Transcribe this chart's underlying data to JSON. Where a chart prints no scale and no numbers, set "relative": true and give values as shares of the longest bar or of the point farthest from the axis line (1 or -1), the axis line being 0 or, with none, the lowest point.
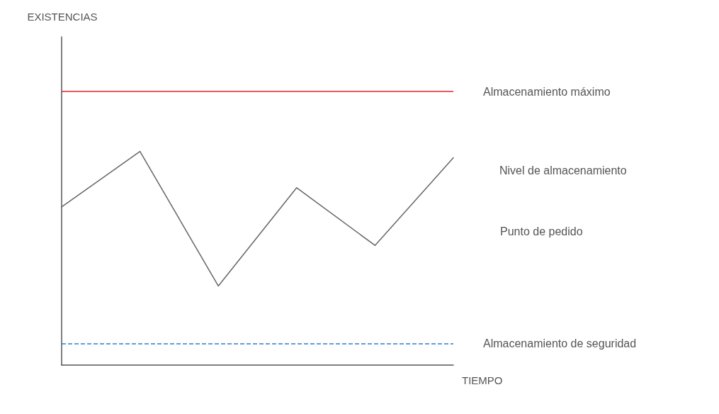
{
  "chart_data": {
    "type": "line",
    "relative": true,
    "xlabel": "TIEMPO",
    "categories": [
      null,
      null,
      null,
      null,
      null,
      null
    ],
    "series": [
      {
        "name": "Nivel de almacenamiento",
        "color": "#666666",
        "values": [
          0.74,
          1,
          0.37,
          0.83,
          0.56,
          0.97
        ]
      }
    ],
    "ref_lines": [
      {
        "axis": "y",
        "value": 1.28,
        "label": "Almacenamiento máximo",
        "color": "#e3242b",
        "line_style": "solid"
      },
      {
        "axis": "y",
        "value": 0.1,
        "label": "Almacenamiento de seguridad",
        "color": "#2f7fd0",
        "line_style": "dashed"
      }
    ],
    "annotations": [
      "EXISTENCIAS",
      "Punto de pedido"
    ]
  }
}
